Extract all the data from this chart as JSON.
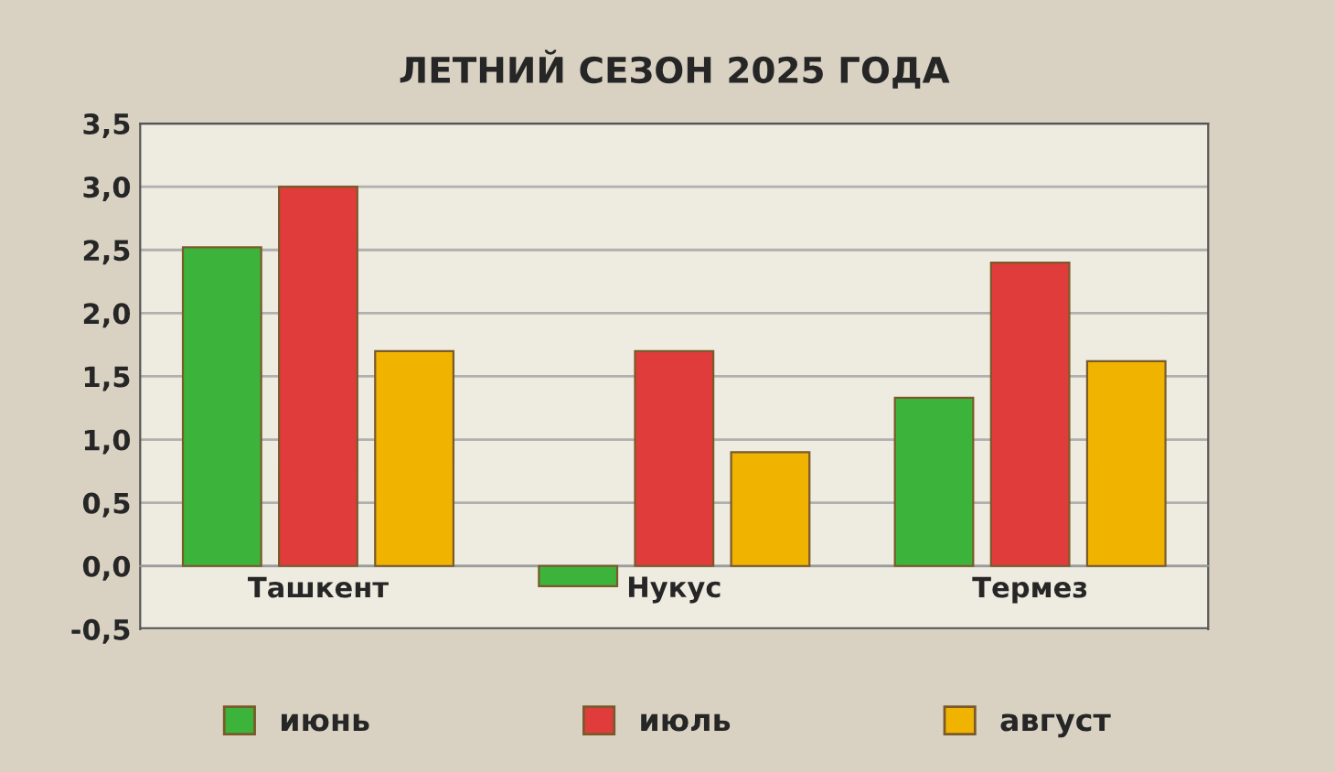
{
  "chart_data": {
    "type": "bar",
    "title": "ЛЕТНИЙ СЕЗОН 2025 ГОДА",
    "categories": [
      "Ташкент",
      "Нукус",
      "Термез"
    ],
    "series": [
      {
        "name": "июнь",
        "color": "#3cb43c",
        "values": [
          2.52,
          -0.16,
          1.33
        ]
      },
      {
        "name": "июль",
        "color": "#e03c3c",
        "values": [
          3.0,
          1.7,
          2.4
        ]
      },
      {
        "name": "август",
        "color": "#f0b400",
        "values": [
          1.7,
          0.9,
          1.62
        ]
      }
    ],
    "ylim": [
      -0.5,
      3.5
    ],
    "yticks": [
      {
        "value": -0.5,
        "label": "-0,5"
      },
      {
        "value": 0,
        "label": "0,0"
      },
      {
        "value": 0.5,
        "label": "0,5"
      },
      {
        "value": 1,
        "label": "1,0"
      },
      {
        "value": 1.5,
        "label": "1,5"
      },
      {
        "value": 2,
        "label": "2,0"
      },
      {
        "value": 2.5,
        "label": "2,5"
      },
      {
        "value": 3,
        "label": "3,0"
      },
      {
        "value": 3.5,
        "label": "3,5"
      }
    ],
    "grid": "y",
    "legend": "bottom"
  }
}
